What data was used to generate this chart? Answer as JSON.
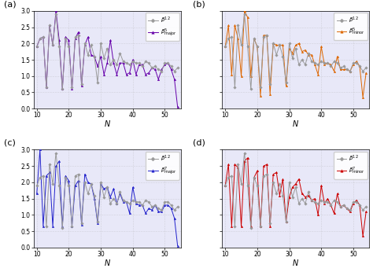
{
  "N": [
    10,
    11,
    12,
    13,
    14,
    15,
    16,
    17,
    18,
    19,
    20,
    21,
    22,
    23,
    24,
    25,
    26,
    27,
    28,
    29,
    30,
    31,
    32,
    33,
    34,
    35,
    36,
    37,
    38,
    39,
    40,
    41,
    42,
    43,
    44,
    45,
    46,
    47,
    48,
    49,
    50,
    51,
    52,
    53,
    54
  ],
  "beta12": [
    1.9,
    2.15,
    2.2,
    0.65,
    2.55,
    1.95,
    2.9,
    1.9,
    0.6,
    2.15,
    1.9,
    0.65,
    2.2,
    2.25,
    0.75,
    2.0,
    1.65,
    1.95,
    1.6,
    0.8,
    2.0,
    1.55,
    1.85,
    1.35,
    1.5,
    1.35,
    1.7,
    1.45,
    1.4,
    1.35,
    1.45,
    1.4,
    1.4,
    1.3,
    1.45,
    1.4,
    1.25,
    1.3,
    1.2,
    1.15,
    1.4,
    1.4,
    1.3,
    1.15,
    1.25
  ],
  "beta5_major": [
    1.9,
    2.15,
    2.2,
    0.65,
    2.55,
    1.95,
    3.0,
    2.1,
    0.6,
    2.2,
    2.1,
    0.6,
    2.15,
    2.35,
    0.7,
    1.95,
    2.2,
    1.65,
    1.6,
    1.3,
    1.6,
    1.05,
    1.4,
    2.1,
    1.4,
    1.05,
    1.4,
    1.4,
    1.05,
    1.1,
    1.5,
    1.05,
    1.35,
    1.35,
    1.05,
    1.1,
    1.25,
    1.2,
    0.9,
    1.2,
    1.35,
    1.4,
    1.2,
    0.9,
    0.05
  ],
  "beta5_minor": [
    1.9,
    2.55,
    1.05,
    2.55,
    2.15,
    1.0,
    3.0,
    2.8,
    1.0,
    2.15,
    1.9,
    0.4,
    2.25,
    2.25,
    0.45,
    2.0,
    1.95,
    1.95,
    1.95,
    0.7,
    1.85,
    1.7,
    1.95,
    2.0,
    1.75,
    1.8,
    1.65,
    1.65,
    1.35,
    1.05,
    1.9,
    1.35,
    1.4,
    1.35,
    1.15,
    1.6,
    1.2,
    1.2,
    1.2,
    1.15,
    1.35,
    1.45,
    1.3,
    0.35,
    1.1
  ],
  "beta7_major": [
    1.65,
    3.0,
    0.65,
    2.2,
    2.3,
    0.65,
    2.5,
    2.65,
    0.65,
    2.2,
    2.05,
    0.65,
    1.9,
    2.05,
    0.7,
    2.25,
    2.0,
    1.95,
    1.5,
    0.75,
    1.95,
    1.8,
    1.85,
    1.55,
    1.8,
    1.35,
    1.65,
    1.4,
    1.4,
    1.05,
    1.85,
    1.35,
    1.3,
    1.3,
    1.05,
    1.2,
    1.15,
    1.3,
    1.1,
    1.1,
    1.3,
    1.3,
    1.2,
    0.9,
    0.05
  ],
  "beta7_minor": [
    1.9,
    2.55,
    0.65,
    2.55,
    2.45,
    0.65,
    2.65,
    2.75,
    0.65,
    2.15,
    2.35,
    0.65,
    2.5,
    2.55,
    0.65,
    2.25,
    2.3,
    1.6,
    2.1,
    0.8,
    1.55,
    1.85,
    1.95,
    2.1,
    1.65,
    1.55,
    1.6,
    1.45,
    1.5,
    1.0,
    1.9,
    1.35,
    1.5,
    1.3,
    1.05,
    1.65,
    1.25,
    1.3,
    1.2,
    1.1,
    1.35,
    1.45,
    1.3,
    0.35,
    1.1
  ],
  "color_beta12": "#999999",
  "color_beta5_major": "#6600AA",
  "color_beta5_minor": "#DD6600",
  "color_beta7_major": "#2222CC",
  "color_beta7_minor": "#CC0000",
  "bg_color": "#E8E8F8",
  "ylim": [
    0.0,
    3.0
  ],
  "xlim": [
    9,
    55
  ],
  "yticks": [
    0.0,
    0.5,
    1.0,
    1.5,
    2.0,
    2.5,
    3.0
  ],
  "xticks": [
    10,
    20,
    30,
    40,
    50
  ],
  "panels": [
    "(a)",
    "(b)",
    "(c)",
    "(d)"
  ]
}
